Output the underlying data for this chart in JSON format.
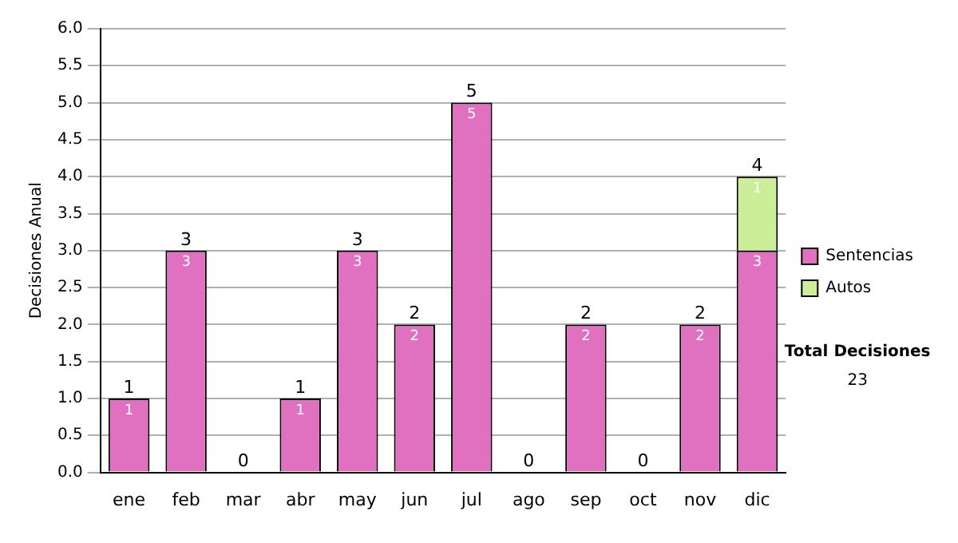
{
  "chart_data": {
    "type": "bar",
    "stacked": true,
    "ylabel": "Decisiones Anual",
    "categories": [
      "ene",
      "feb",
      "mar",
      "abr",
      "may",
      "jun",
      "jul",
      "ago",
      "sep",
      "oct",
      "nov",
      "dic"
    ],
    "series": [
      {
        "name": "Sentencias",
        "color": "#e070c0",
        "values": [
          1,
          3,
          0,
          1,
          3,
          2,
          5,
          0,
          2,
          0,
          2,
          3
        ],
        "value_labels": [
          "1",
          "3",
          null,
          "1",
          "3",
          "2",
          "5",
          null,
          "2",
          null,
          "2",
          "3"
        ]
      },
      {
        "name": "Autos",
        "color": "#ccee99",
        "values": [
          0,
          0,
          0,
          0,
          0,
          0,
          0,
          0,
          0,
          0,
          0,
          1
        ],
        "value_labels": [
          null,
          null,
          null,
          null,
          null,
          null,
          null,
          null,
          null,
          null,
          null,
          "1"
        ]
      }
    ],
    "totals": [
      "1",
      "3",
      "0",
      "1",
      "3",
      "2",
      "5",
      "0",
      "2",
      "0",
      "2",
      "4"
    ],
    "ylim": [
      0,
      6
    ],
    "yticks": [
      {
        "value": 0,
        "label": "0.0"
      },
      {
        "value": 0.5,
        "label": "0.5"
      },
      {
        "value": 1,
        "label": "1.0"
      },
      {
        "value": 1.5,
        "label": "1.5"
      },
      {
        "value": 2,
        "label": "2.0"
      },
      {
        "value": 2.5,
        "label": "2.5"
      },
      {
        "value": 3,
        "label": "3.0"
      },
      {
        "value": 3.5,
        "label": "3.5"
      },
      {
        "value": 4,
        "label": "4.0"
      },
      {
        "value": 4.5,
        "label": "4.5"
      },
      {
        "value": 5,
        "label": "5.0"
      },
      {
        "value": 5.5,
        "label": "5.5"
      },
      {
        "value": 6,
        "label": "6.0"
      }
    ],
    "grid": "y",
    "legend": "right",
    "annotations": [
      "Total Decisiones",
      "23"
    ]
  }
}
